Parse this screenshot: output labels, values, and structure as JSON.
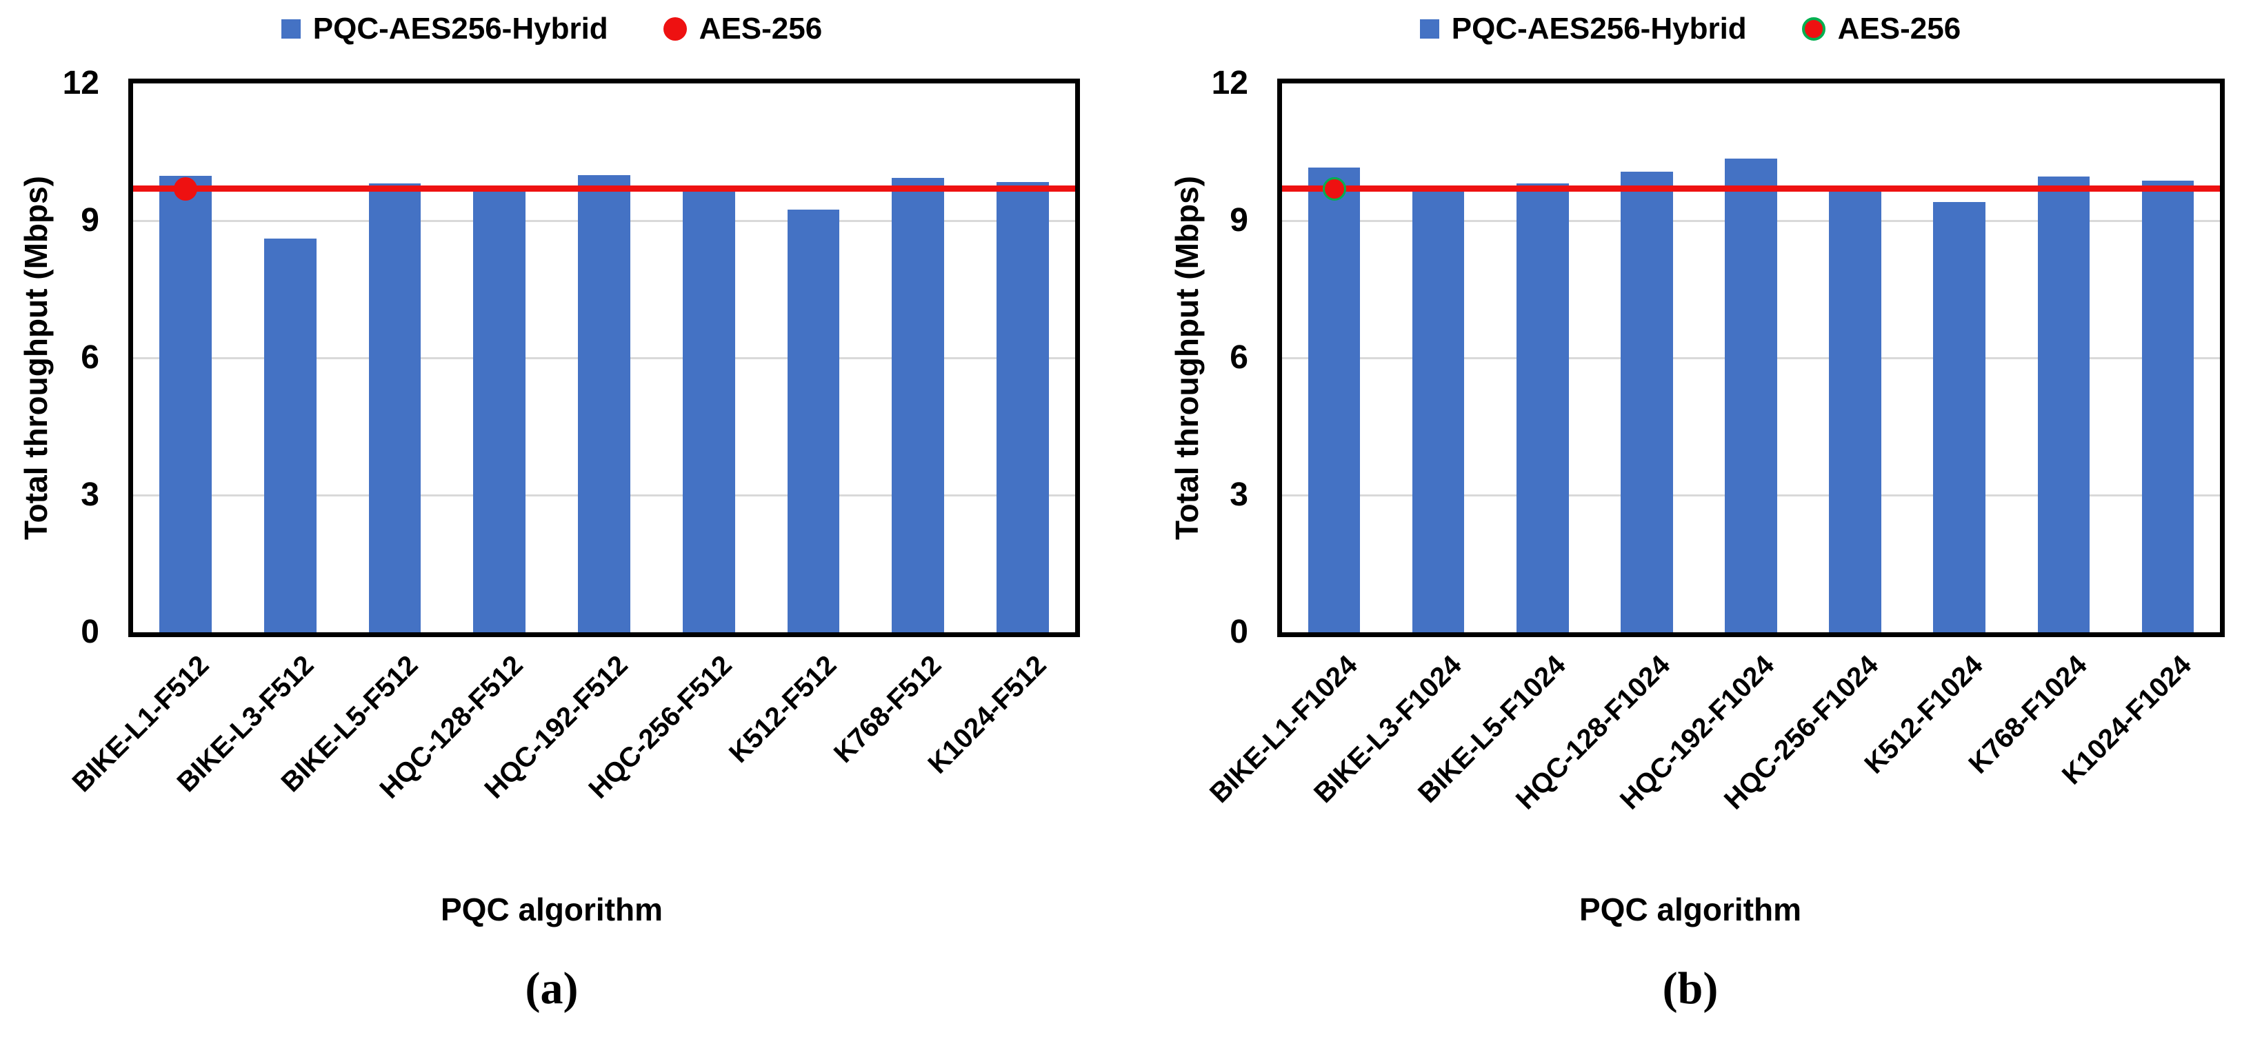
{
  "style": {
    "bar_color": "#4472C4",
    "ref_line_color": "#EE1111",
    "marker_color": "#EE1111",
    "marker_ring_color": "#00B050",
    "grid_color": "#D9D9D9",
    "axis_color": "#000000",
    "background": "#FFFFFF"
  },
  "chart_data": [
    {
      "type": "bar",
      "panel_caption": "(a)",
      "xlabel": "PQC algorithm",
      "ylabel": "Total throughput (Mbps)",
      "ylim": [
        0,
        12
      ],
      "yticks": [
        0,
        3,
        6,
        9,
        12
      ],
      "grid": true,
      "legend_position": "top",
      "categories": [
        "BIKE-L1-F512",
        "BIKE-L3-F512",
        "BIKE-L5-F512",
        "HQC-128-F512",
        "HQC-192-F512",
        "HQC-256-F512",
        "K512-F512",
        "K768-F512",
        "K1024-F512"
      ],
      "series": [
        {
          "name": "PQC-AES256-Hybrid",
          "type": "bar",
          "values": [
            9.98,
            8.61,
            9.82,
            9.67,
            10.0,
            9.73,
            9.24,
            9.93,
            9.85
          ]
        },
        {
          "name": "AES-256",
          "type": "reference-line",
          "value": 9.7,
          "marker": {
            "category_index": 0,
            "ring": false
          }
        }
      ]
    },
    {
      "type": "bar",
      "panel_caption": "(b)",
      "xlabel": "PQC algorithm",
      "ylabel": "Total throughput (Mbps)",
      "ylim": [
        0,
        12
      ],
      "yticks": [
        0,
        3,
        6,
        9,
        12
      ],
      "grid": true,
      "legend_position": "top",
      "categories": [
        "BIKE-L1-F1024",
        "BIKE-L3-F1024",
        "BIKE-L5-F1024",
        "HQC-128-F1024",
        "HQC-192-F1024",
        "HQC-256-F1024",
        "K512-F1024",
        "K768-F1024",
        "K1024-F1024"
      ],
      "series": [
        {
          "name": "PQC-AES256-Hybrid",
          "type": "bar",
          "values": [
            10.16,
            9.64,
            9.82,
            10.07,
            10.36,
            9.7,
            9.4,
            9.96,
            9.88
          ]
        },
        {
          "name": "AES-256",
          "type": "reference-line",
          "value": 9.7,
          "marker": {
            "category_index": 0,
            "ring": true
          }
        }
      ]
    }
  ]
}
